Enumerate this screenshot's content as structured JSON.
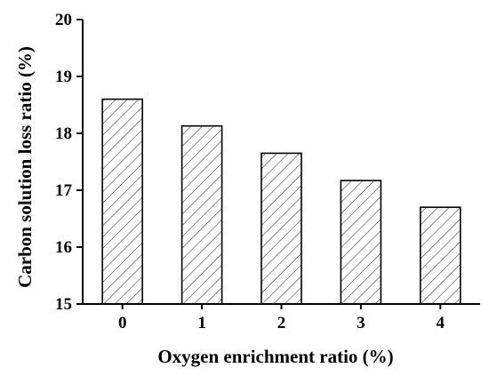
{
  "chart_data": {
    "type": "bar",
    "title": "",
    "xlabel": "Oxygen enrichment ratio (%)",
    "ylabel": "Carbon solution loss ratio (%)",
    "categories": [
      "0",
      "1",
      "2",
      "3",
      "4"
    ],
    "values": [
      18.6,
      18.13,
      17.65,
      17.17,
      16.7
    ],
    "ylim": [
      15,
      20
    ],
    "yticks": [
      "15",
      "16",
      "17",
      "18",
      "19",
      "20"
    ],
    "grid": false,
    "legend": "none",
    "bar_fill": "diagonal-hatch",
    "colors": {
      "bar_edge": "#000000",
      "hatch": "#000000",
      "background": "#ffffff"
    }
  }
}
